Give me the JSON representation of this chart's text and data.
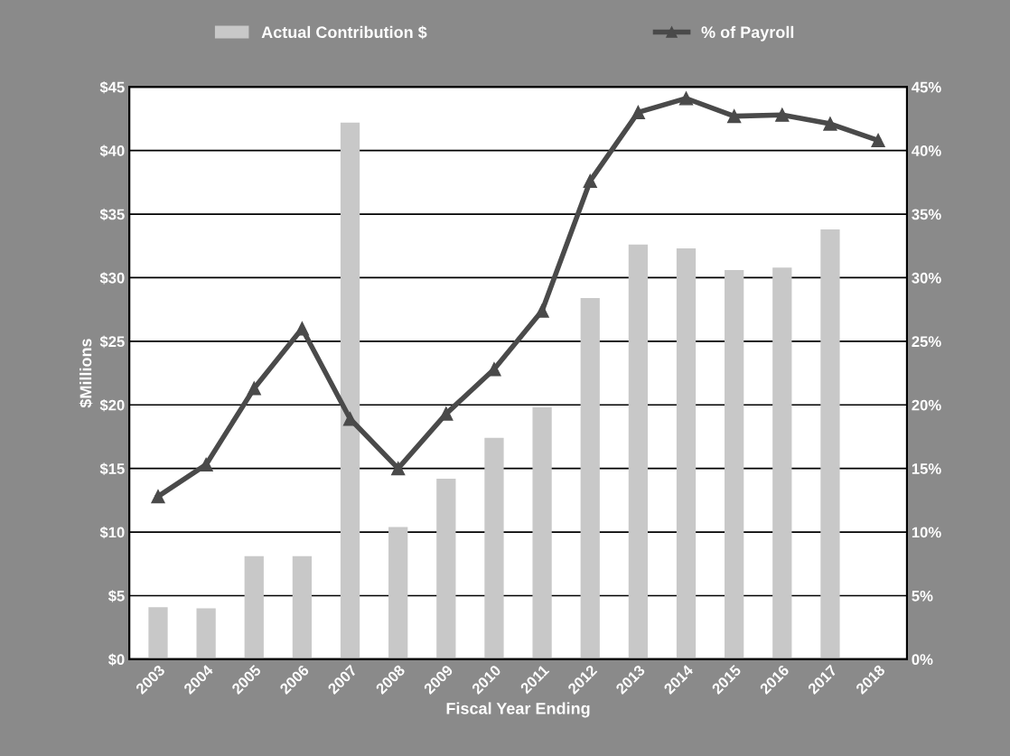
{
  "chart_data": {
    "type": "bar",
    "xlabel": "Fiscal Year Ending",
    "ylabel": "$Millions",
    "categories": [
      "2003",
      "2004",
      "2005",
      "2006",
      "2007",
      "2008",
      "2009",
      "2010",
      "2011",
      "2012",
      "2013",
      "2014",
      "2015",
      "2016",
      "2017",
      "2018"
    ],
    "series": [
      {
        "name": "Actual Contribution $",
        "color": "#c8c8c8",
        "values": [
          4.1,
          4.0,
          8.1,
          8.1,
          42.2,
          10.4,
          14.2,
          17.4,
          19.8,
          28.4,
          32.6,
          32.3,
          30.6,
          30.8,
          33.8,
          null
        ]
      },
      {
        "name": "% of Payroll",
        "type": "line",
        "axis": "y2",
        "color": "#4a4a4a",
        "marker": "triangle",
        "values": [
          12.8,
          15.3,
          21.3,
          26.0,
          18.9,
          15.0,
          19.3,
          22.8,
          27.4,
          37.6,
          43.0,
          44.1,
          42.7,
          42.8,
          42.1,
          40.8
        ]
      }
    ],
    "ylim": [
      0,
      45
    ],
    "yticks": [
      {
        "value": 0,
        "label": "$0"
      },
      {
        "value": 5,
        "label": "$5"
      },
      {
        "value": 10,
        "label": "$10"
      },
      {
        "value": 15,
        "label": "$15"
      },
      {
        "value": 20,
        "label": "$20"
      },
      {
        "value": 25,
        "label": "$25"
      },
      {
        "value": 30,
        "label": "$30"
      },
      {
        "value": 35,
        "label": "$35"
      },
      {
        "value": 40,
        "label": "$40"
      },
      {
        "value": 45,
        "label": "$45"
      }
    ],
    "y2lim": [
      0,
      45
    ],
    "y2ticks": [
      {
        "value": 0,
        "label": "0%"
      },
      {
        "value": 5,
        "label": "5%"
      },
      {
        "value": 10,
        "label": "10%"
      },
      {
        "value": 15,
        "label": "15%"
      },
      {
        "value": 20,
        "label": "20%"
      },
      {
        "value": 25,
        "label": "25%"
      },
      {
        "value": 30,
        "label": "30%"
      },
      {
        "value": 35,
        "label": "35%"
      },
      {
        "value": 40,
        "label": "40%"
      },
      {
        "value": 45,
        "label": "45%"
      }
    ],
    "grid": "y",
    "legend": "top"
  }
}
